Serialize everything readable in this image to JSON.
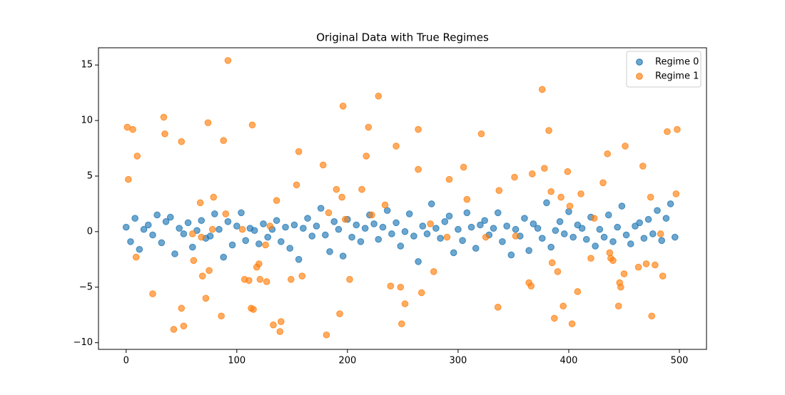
{
  "chart_data": {
    "type": "scatter",
    "title": "Original Data with True Regimes",
    "xlim": [
      -25,
      524.5
    ],
    "ylim": [
      -10.6,
      16.55
    ],
    "xticks": [
      0,
      100,
      200,
      300,
      400,
      500
    ],
    "yticks": [
      {
        "value": -10,
        "label": "−10"
      },
      {
        "value": -5,
        "label": "−5"
      },
      0,
      5,
      10,
      15
    ],
    "legend": "upper right",
    "series": [
      {
        "name": "Regime 0",
        "color": "#1f77b4",
        "x": [
          0,
          4,
          8,
          12,
          16,
          20,
          24,
          28,
          32,
          36,
          40,
          44,
          48,
          52,
          56,
          60,
          64,
          68,
          72,
          76,
          80,
          84,
          88,
          92,
          96,
          100,
          104,
          108,
          112,
          116,
          120,
          124,
          128,
          132,
          136,
          140,
          144,
          148,
          152,
          156,
          160,
          164,
          168,
          172,
          176,
          180,
          184,
          188,
          192,
          196,
          200,
          204,
          208,
          212,
          216,
          220,
          224,
          228,
          232,
          236,
          240,
          244,
          248,
          252,
          256,
          260,
          264,
          268,
          272,
          276,
          280,
          284,
          288,
          292,
          296,
          300,
          304,
          308,
          312,
          316,
          320,
          324,
          328,
          332,
          336,
          340,
          344,
          348,
          352,
          356,
          360,
          364,
          368,
          372,
          376,
          380,
          384,
          388,
          392,
          396,
          400,
          404,
          408,
          412,
          416,
          420,
          424,
          428,
          432,
          436,
          440,
          444,
          448,
          452,
          456,
          460,
          464,
          468,
          472,
          476,
          480,
          484,
          488,
          492,
          496
        ],
        "values": [
          0.4,
          -0.9,
          1.2,
          -1.6,
          0.2,
          0.6,
          -0.3,
          1.5,
          -1.0,
          0.9,
          1.3,
          -2.0,
          0.3,
          -0.2,
          0.8,
          -1.4,
          0.1,
          1.0,
          -0.6,
          -0.4,
          1.6,
          0.2,
          -2.3,
          0.9,
          -1.2,
          0.5,
          1.7,
          -0.8,
          0.3,
          0.1,
          -1.1,
          0.7,
          -0.5,
          0.2,
          1.0,
          -0.9,
          0.4,
          -1.5,
          0.6,
          -2.5,
          0.3,
          1.2,
          -0.4,
          0.5,
          2.1,
          -0.3,
          -1.8,
          0.9,
          0.2,
          -2.2,
          1.1,
          -0.5,
          0.6,
          -0.9,
          0.3,
          1.5,
          0.7,
          -0.7,
          0.4,
          1.9,
          -0.2,
          0.8,
          -1.3,
          0.0,
          1.6,
          -0.4,
          -2.7,
          0.5,
          -0.2,
          2.5,
          0.3,
          -0.6,
          0.9,
          1.4,
          -1.9,
          0.2,
          -0.8,
          1.7,
          0.4,
          -1.5,
          0.6,
          1.0,
          -0.3,
          0.3,
          1.7,
          -0.9,
          0.5,
          -2.1,
          0.2,
          -0.4,
          1.2,
          -1.7,
          0.7,
          0.3,
          -0.6,
          2.6,
          -1.4,
          0.1,
          0.9,
          -0.2,
          1.8,
          -0.5,
          0.6,
          0.3,
          -0.7,
          1.3,
          -1.3,
          0.2,
          -0.5,
          1.5,
          -0.9,
          0.4,
          2.3,
          -0.3,
          -1.1,
          0.5,
          0.8,
          -0.6,
          1.1,
          -0.2,
          1.9,
          -0.8,
          1.2,
          2.5,
          -0.5
        ]
      },
      {
        "name": "Regime 1",
        "color": "#ff7f0e",
        "x": [
          1,
          2,
          6,
          10,
          9,
          24,
          34,
          35,
          43,
          50,
          50,
          52,
          61,
          67,
          69,
          72,
          74,
          75,
          79,
          86,
          88,
          92,
          90,
          114,
          107,
          111,
          113,
          115,
          118,
          120,
          121,
          126,
          127,
          133,
          136,
          139,
          140,
          149,
          154,
          156,
          159,
          178,
          181,
          190,
          193,
          195,
          196,
          202,
          213,
          217,
          219,
          228,
          234,
          239,
          244,
          248,
          249,
          252,
          264,
          264,
          267,
          278,
          292,
          305,
          308,
          321,
          336,
          337,
          351,
          364,
          366,
          367,
          378,
          376,
          382,
          384,
          385,
          387,
          390,
          393,
          395,
          399,
          401,
          403,
          408,
          411,
          420,
          431,
          435,
          437,
          438,
          440,
          445,
          446,
          447,
          450,
          451,
          463,
          467,
          470,
          474,
          475,
          478,
          485,
          489,
          498,
          497,
          60,
          68,
          78,
          105,
          130,
          183,
          198,
          222,
          275,
          290,
          325,
          352,
          423,
          483
        ],
        "values": [
          9.4,
          4.7,
          9.2,
          6.8,
          -2.3,
          -5.6,
          10.3,
          8.8,
          -8.8,
          8.1,
          -6.9,
          -8.5,
          -2.6,
          2.6,
          -4,
          -6,
          9.8,
          -3.5,
          3.1,
          -7.6,
          8.2,
          15.4,
          1.6,
          9.6,
          -4.3,
          -4.4,
          -6.9,
          -7,
          -3.2,
          -2.9,
          -4.3,
          -1.2,
          -4.5,
          -8.4,
          2.8,
          -9,
          -8.1,
          -4.3,
          4.2,
          7.2,
          -4,
          6,
          -9.3,
          3.8,
          -7.4,
          3.1,
          11.3,
          -4.3,
          3.8,
          6.8,
          9.4,
          12.2,
          2.4,
          -4.9,
          7.7,
          -5,
          -8.3,
          -6.5,
          5.6,
          9.2,
          -5.5,
          -3.6,
          4.7,
          5.8,
          2.9,
          8.8,
          -6.8,
          3.7,
          4.9,
          -4.6,
          -4.9,
          5.2,
          5.7,
          12.8,
          9.1,
          3.6,
          -2.8,
          -7.8,
          -3.6,
          3.1,
          -6.7,
          5.4,
          2.3,
          -8.3,
          -5.4,
          3.4,
          -2.4,
          4.4,
          7,
          -1.9,
          -2.4,
          -2.6,
          -6.7,
          -4.6,
          -5,
          -3.8,
          7.7,
          -3.2,
          5.9,
          -2.9,
          3.1,
          -7.6,
          -3,
          -4,
          9,
          9.2,
          3.4,
          -0.2,
          -0.5,
          0.2,
          0.2,
          0.5,
          1.7,
          1.1,
          1.5,
          0.7,
          -0.5,
          -0.5,
          -0.4,
          1.2,
          -0.2
        ]
      }
    ]
  }
}
